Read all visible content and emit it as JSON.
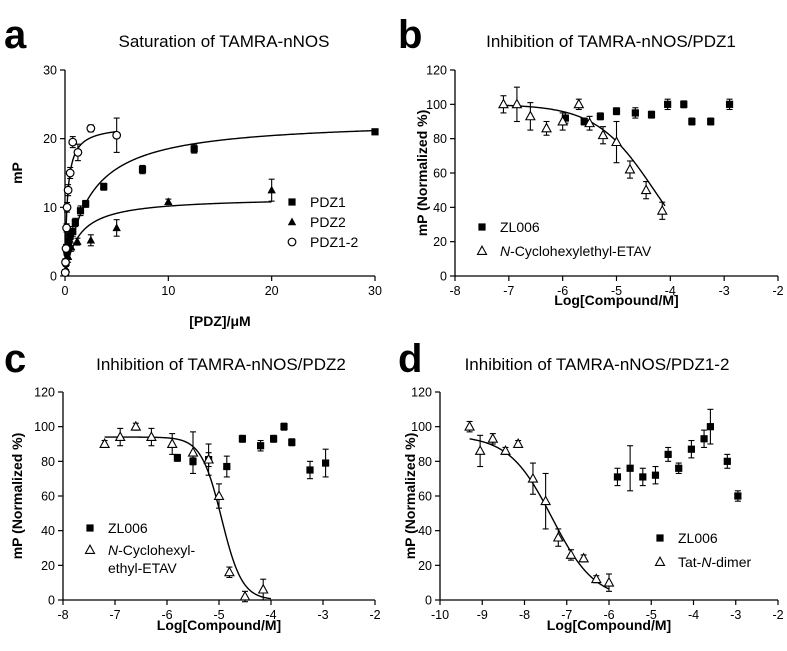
{
  "chart_data": [
    {
      "panel": "a",
      "type": "scatter",
      "title": "Saturation of TAMRA-nNOS",
      "xlabel": "[PDZ]/μM",
      "ylabel": "mP",
      "xlim": [
        0,
        30
      ],
      "ylim": [
        0,
        30
      ],
      "xticks": [
        0,
        10,
        20,
        30
      ],
      "yticks": [
        0,
        10,
        20,
        30
      ],
      "legend_position": "bottom-right",
      "series": [
        {
          "name": "PDZ1",
          "marker": "square",
          "points": [
            [
              0.05,
              0.5
            ],
            [
              0.1,
              2
            ],
            [
              0.2,
              3.5
            ],
            [
              0.3,
              4.8
            ],
            [
              0.5,
              5.8
            ],
            [
              0.75,
              6.5
            ],
            [
              1,
              7.8
            ],
            [
              1.5,
              9.5
            ],
            [
              2,
              10.5
            ],
            [
              3.75,
              13
            ],
            [
              7.5,
              15.5
            ],
            [
              12.5,
              18.5
            ],
            [
              30,
              21
            ]
          ],
          "errors": [
            0.3,
            0.5,
            0.6,
            0.6,
            0.8,
            0.7,
            0.6,
            0.7,
            0.5,
            0.5,
            0.6,
            0.6,
            0.3
          ],
          "fit": {
            "bmax": 22.8,
            "kd": 2.3
          }
        },
        {
          "name": "PDZ2",
          "marker": "triangle",
          "points": [
            [
              0.1,
              1
            ],
            [
              0.3,
              2.8
            ],
            [
              0.6,
              4.2
            ],
            [
              1.2,
              5
            ],
            [
              2.5,
              5.2
            ],
            [
              5,
              7
            ],
            [
              10,
              10.8
            ],
            [
              20,
              12.5
            ]
          ],
          "errors": [
            0.4,
            0.8,
            0.6,
            0.5,
            0.8,
            1.2,
            0.4,
            1.6
          ],
          "fit": {
            "bmax": 11.5,
            "kd": 1.3,
            "xmax": 20
          }
        },
        {
          "name": "PDZ1-2",
          "marker": "circle",
          "points": [
            [
              0.02,
              0.5
            ],
            [
              0.05,
              2
            ],
            [
              0.1,
              4
            ],
            [
              0.15,
              7
            ],
            [
              0.2,
              10
            ],
            [
              0.3,
              12.5
            ],
            [
              0.5,
              15
            ],
            [
              0.75,
              19.5
            ],
            [
              1.25,
              18
            ],
            [
              2.5,
              21.5
            ],
            [
              5,
              20.5
            ]
          ],
          "errors": [
            0.3,
            0.5,
            0.6,
            0.6,
            0.7,
            0.8,
            0.8,
            0.8,
            1.2,
            0.5,
            2.5
          ],
          "fit": {
            "bmax": 22,
            "kd": 0.23,
            "xmax": 5
          }
        }
      ]
    },
    {
      "panel": "b",
      "type": "scatter",
      "title": "Inhibition of TAMRA-nNOS/PDZ1",
      "xlabel": "Log[Compound/M]",
      "ylabel": "mP (Normalized %)",
      "xlim": [
        -8,
        -2
      ],
      "ylim": [
        0,
        120
      ],
      "xticks": [
        -8,
        -7,
        -6,
        -5,
        -4,
        -3,
        -2
      ],
      "yticks": [
        0,
        20,
        40,
        60,
        80,
        100,
        120
      ],
      "legend_position": "bottom-left",
      "series": [
        {
          "name": "ZL006",
          "marker": "square",
          "points": [
            [
              -5.95,
              92
            ],
            [
              -5.6,
              90
            ],
            [
              -5.3,
              93
            ],
            [
              -5,
              96
            ],
            [
              -4.65,
              95
            ],
            [
              -4.35,
              94
            ],
            [
              -4.05,
              100
            ],
            [
              -3.75,
              100
            ],
            [
              -3.6,
              90
            ],
            [
              -3.25,
              90
            ],
            [
              -2.9,
              100
            ]
          ],
          "errors": [
            3,
            2,
            2,
            2,
            3,
            2,
            3,
            2,
            2,
            2,
            3
          ]
        },
        {
          "name": "N-Cyclohexylethyl-ETAV",
          "marker": "triangle",
          "points": [
            [
              -7.1,
              100
            ],
            [
              -6.85,
              100
            ],
            [
              -6.6,
              93
            ],
            [
              -6.3,
              86
            ],
            [
              -6.0,
              90
            ],
            [
              -5.7,
              100
            ],
            [
              -5.5,
              89
            ],
            [
              -5.25,
              82
            ],
            [
              -5.0,
              78
            ],
            [
              -4.75,
              62
            ],
            [
              -4.45,
              50
            ],
            [
              -4.15,
              38
            ]
          ],
          "errors": [
            5,
            10,
            8,
            4,
            5,
            3,
            4,
            5,
            12,
            5,
            5,
            5
          ],
          "fit": {
            "top": 100,
            "bottom": 0,
            "logic50": -4.3,
            "hill": 0.8,
            "xfrom": -7.1,
            "xto": -4.1
          }
        }
      ]
    },
    {
      "panel": "c",
      "type": "scatter",
      "title": "Inhibition of TAMRA-nNOS/PDZ2",
      "xlabel": "Log[Compound/M]",
      "ylabel": "mP (Normalized %)",
      "xlim": [
        -8,
        -2
      ],
      "ylim": [
        0,
        120
      ],
      "xticks": [
        -8,
        -7,
        -6,
        -5,
        -4,
        -3,
        -2
      ],
      "yticks": [
        0,
        20,
        40,
        60,
        80,
        100,
        120
      ],
      "legend_position": "bottom-left",
      "series": [
        {
          "name": "ZL006",
          "marker": "square",
          "points": [
            [
              -5.8,
              82
            ],
            [
              -5.5,
              80
            ],
            [
              -5.2,
              81
            ],
            [
              -4.85,
              77
            ],
            [
              -4.55,
              93
            ],
            [
              -4.2,
              89
            ],
            [
              -3.95,
              93
            ],
            [
              -3.75,
              100
            ],
            [
              -3.6,
              91
            ],
            [
              -3.25,
              75
            ],
            [
              -2.95,
              79
            ]
          ],
          "errors": [
            2,
            2,
            4,
            6,
            2,
            3,
            2,
            2,
            2,
            5,
            8
          ]
        },
        {
          "name": "N-Cyclohexyl-\nethyl-ETAV",
          "marker": "triangle",
          "points": [
            [
              -7.2,
              90
            ],
            [
              -6.9,
              94
            ],
            [
              -6.6,
              100
            ],
            [
              -6.3,
              94
            ],
            [
              -5.9,
              90
            ],
            [
              -5.5,
              85
            ],
            [
              -5.2,
              81
            ],
            [
              -5.0,
              60
            ],
            [
              -4.8,
              16
            ],
            [
              -4.5,
              2
            ],
            [
              -4.15,
              6
            ]
          ],
          "errors": [
            2,
            5,
            2,
            5,
            6,
            12,
            9,
            7,
            3,
            3,
            6
          ],
          "fit": {
            "top": 94,
            "bottom": 0,
            "logic50": -4.95,
            "hill": 2.2,
            "xfrom": -7.2,
            "xto": -4.0
          }
        }
      ]
    },
    {
      "panel": "d",
      "type": "scatter",
      "title": "Inhibition of TAMRA-nNOS/PDZ1-2",
      "xlabel": "Log[Compound/M]",
      "ylabel": "mP (Normalized %)",
      "xlim": [
        -10,
        -2
      ],
      "ylim": [
        0,
        120
      ],
      "xticks": [
        -10,
        -9,
        -8,
        -7,
        -6,
        -5,
        -4,
        -3,
        -2
      ],
      "yticks": [
        0,
        20,
        40,
        60,
        80,
        100,
        120
      ],
      "legend_position": "bottom-right",
      "series": [
        {
          "name": "ZL006",
          "marker": "square",
          "points": [
            [
              -5.8,
              71
            ],
            [
              -5.5,
              76
            ],
            [
              -5.2,
              71
            ],
            [
              -4.9,
              72
            ],
            [
              -4.6,
              84
            ],
            [
              -4.35,
              76
            ],
            [
              -4.05,
              87
            ],
            [
              -3.75,
              93
            ],
            [
              -3.6,
              100
            ],
            [
              -3.2,
              80
            ],
            [
              -2.95,
              60
            ]
          ],
          "errors": [
            5,
            13,
            5,
            5,
            4,
            3,
            5,
            5,
            10,
            4,
            3
          ]
        },
        {
          "name": "Tat-N-dimer",
          "marker": "triangle",
          "points": [
            [
              -9.3,
              100
            ],
            [
              -9.05,
              86
            ],
            [
              -8.75,
              93
            ],
            [
              -8.45,
              86
            ],
            [
              -8.15,
              90
            ],
            [
              -7.8,
              70
            ],
            [
              -7.5,
              57
            ],
            [
              -7.2,
              36
            ],
            [
              -6.9,
              26
            ],
            [
              -6.6,
              24
            ],
            [
              -6.3,
              12
            ],
            [
              -6.0,
              10
            ]
          ],
          "errors": [
            3,
            9,
            3,
            2,
            2,
            9,
            16,
            5,
            3,
            2,
            2,
            5
          ],
          "fit": {
            "top": 95,
            "bottom": 0,
            "logic50": -7.35,
            "hill": 0.85,
            "xfrom": -9.3,
            "xto": -6.0
          }
        }
      ]
    }
  ]
}
